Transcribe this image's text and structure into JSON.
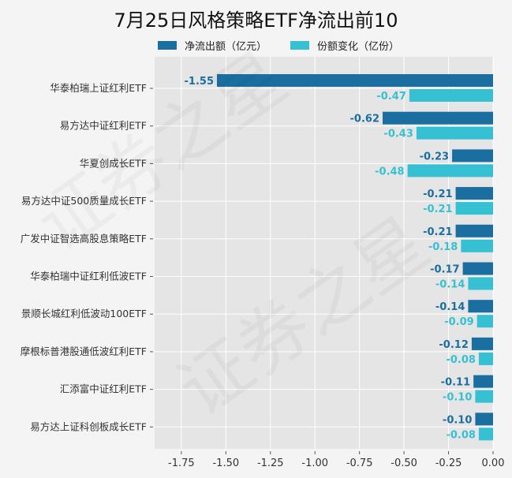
{
  "chart_data": {
    "type": "bar",
    "orientation": "horizontal",
    "title": "7月25日风格策略ETF净流出前10",
    "categories": [
      "华泰柏瑞上证红利ETF",
      "易方达中证红利ETF",
      "华夏创成长ETF",
      "易方达中证500质量成长ETF",
      "广发中证智选高股息策略ETF",
      "华泰柏瑞中证红利低波ETF",
      "景顺长城红利低波动100ETF",
      "摩根标普港股通低波红利ETF",
      "汇添富中证红利ETF",
      "易方达上证科创板成长ETF"
    ],
    "series": [
      {
        "name": "净流出额（亿元）",
        "color": "#1a6fa0",
        "values": [
          -1.55,
          -0.62,
          -0.23,
          -0.21,
          -0.21,
          -0.17,
          -0.14,
          -0.12,
          -0.11,
          -0.1
        ],
        "labels": [
          "-1.55",
          "-0.62",
          "-0.23",
          "-0.21",
          "-0.21",
          "-0.17",
          "-0.14",
          "-0.12",
          "-0.11",
          "-0.10"
        ]
      },
      {
        "name": "份额变化（亿份）",
        "color": "#36c0d3",
        "values": [
          -0.47,
          -0.43,
          -0.48,
          -0.21,
          -0.18,
          -0.14,
          -0.09,
          -0.08,
          -0.1,
          -0.08
        ],
        "labels": [
          "-0.47",
          "-0.43",
          "-0.48",
          "-0.21",
          "-0.18",
          "-0.14",
          "-0.09",
          "-0.08",
          "-0.10",
          "-0.08"
        ]
      }
    ],
    "xlim": [
      -1.9,
      0
    ],
    "xticks": [
      "-1.75",
      "-1.50",
      "-1.25",
      "-1.00",
      "-0.75",
      "-0.50",
      "-0.25",
      "0.00"
    ],
    "xtick_values": [
      -1.75,
      -1.5,
      -1.25,
      -1.0,
      -0.75,
      -0.5,
      -0.25,
      0
    ],
    "grid": true,
    "legend_position": "top",
    "background": "#e5e5e5"
  },
  "watermark": "证券之星"
}
